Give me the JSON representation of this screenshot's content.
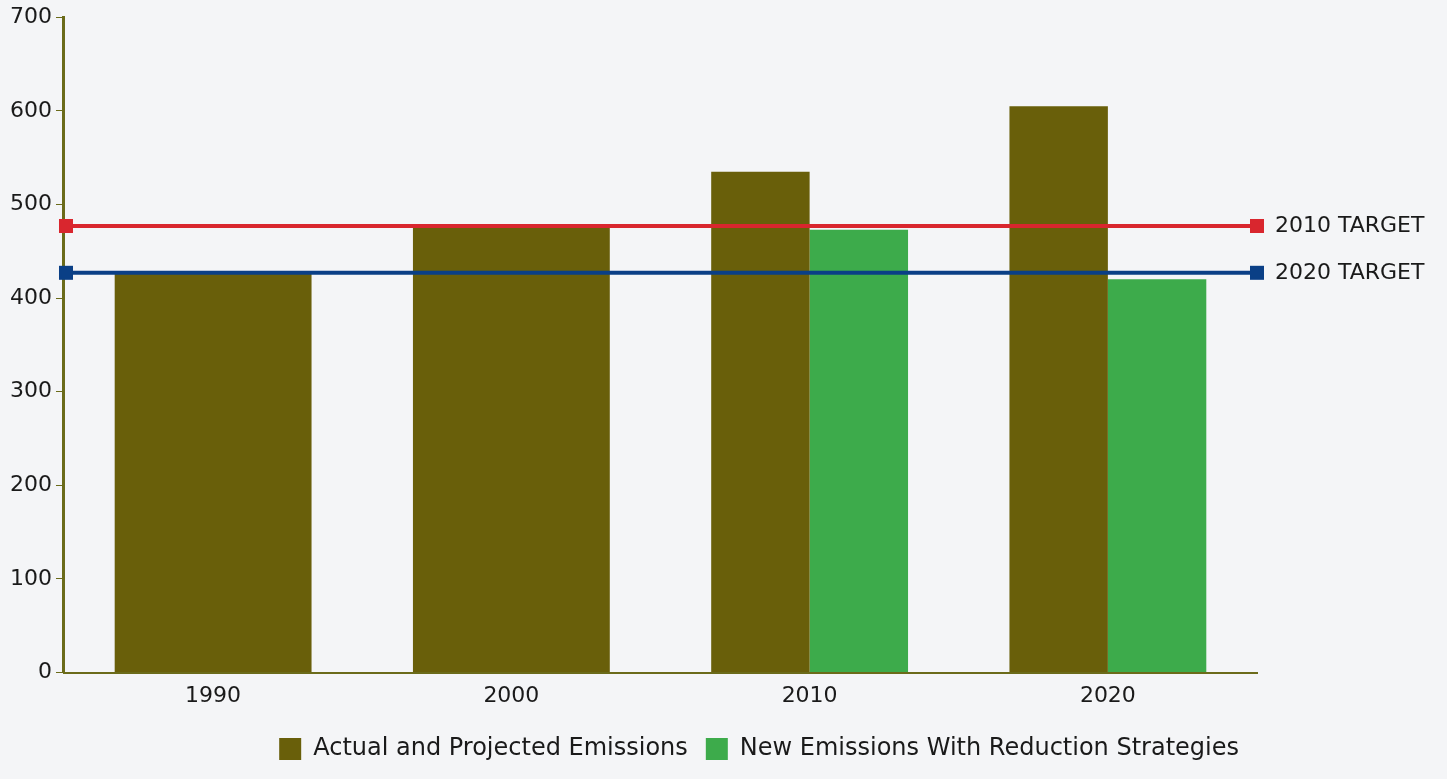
{
  "chart_data": {
    "type": "bar",
    "categories": [
      "1990",
      "2000",
      "2010",
      "2020"
    ],
    "series": [
      {
        "name": "Actual and Projected Emissions",
        "color": "#695f0a",
        "values": [
          427,
          475,
          535,
          605
        ]
      },
      {
        "name": "New Emissions With Reduction Strategies",
        "color": "#3dab4b",
        "values": [
          null,
          null,
          473,
          420
        ]
      }
    ],
    "annotations": [
      {
        "text": "2010 TARGET",
        "y": 477,
        "color": "#d9262e"
      },
      {
        "text": "2020 TARGET",
        "y": 427,
        "color": "#0a3f86"
      }
    ],
    "ylim": [
      0,
      700
    ],
    "yticks": [
      0,
      100,
      200,
      300,
      400,
      500,
      600,
      700
    ],
    "grid": false,
    "legend": "lower right"
  }
}
